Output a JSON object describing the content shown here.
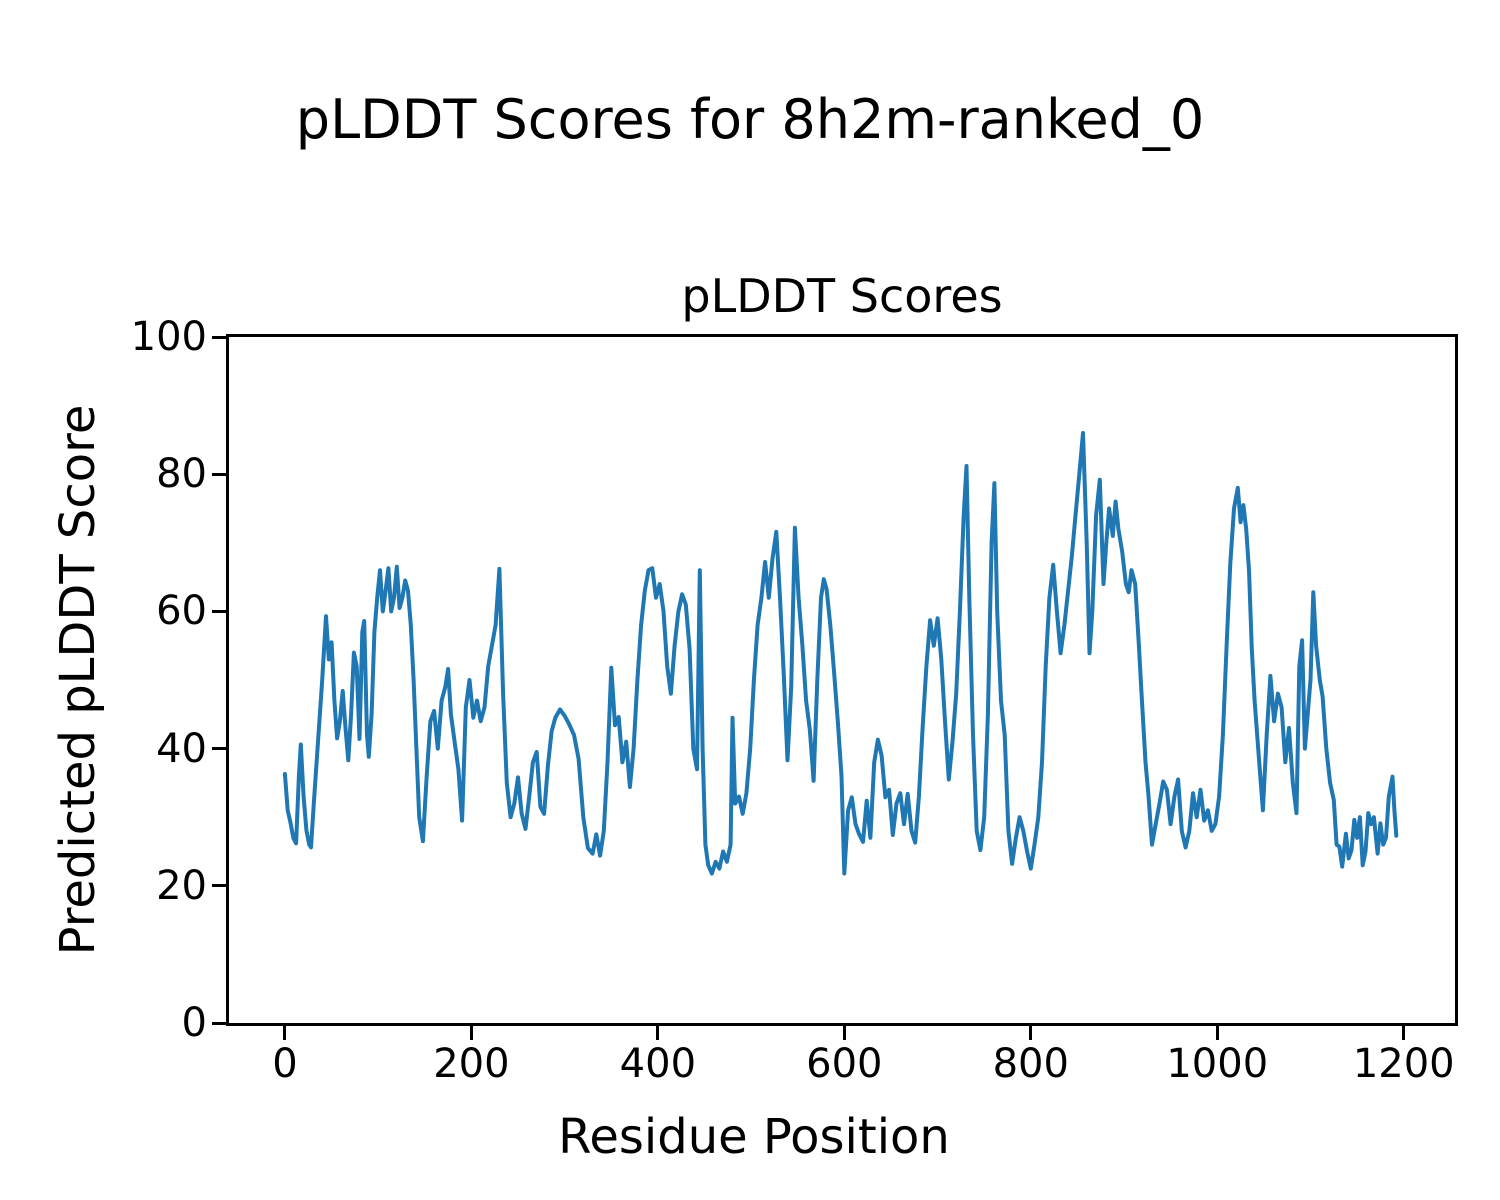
{
  "figure": {
    "suptitle": "pLDDT Scores for 8h2m-ranked_0"
  },
  "chart_data": {
    "type": "line",
    "title": "pLDDT Scores",
    "xlabel": "Residue Position",
    "ylabel": "Predicted pLDDT Score",
    "xlim": [
      -60,
      1255
    ],
    "ylim": [
      0,
      100
    ],
    "xticks": [
      0,
      200,
      400,
      600,
      800,
      1000,
      1200
    ],
    "yticks": [
      0,
      20,
      40,
      60,
      80,
      100
    ],
    "grid": false,
    "legend": "none",
    "line_color": "#1f77b4",
    "line_width": 4,
    "series": [
      {
        "name": "pLDDT",
        "points": [
          [
            0,
            36.3
          ],
          [
            3,
            31
          ],
          [
            6,
            29.2
          ],
          [
            9,
            27
          ],
          [
            12,
            26.2
          ],
          [
            15,
            36
          ],
          [
            17,
            40.6
          ],
          [
            20,
            33
          ],
          [
            23,
            28.1
          ],
          [
            26,
            26
          ],
          [
            28,
            25.6
          ],
          [
            31,
            32
          ],
          [
            34,
            38
          ],
          [
            37,
            44
          ],
          [
            40,
            50
          ],
          [
            44,
            59.3
          ],
          [
            47,
            53
          ],
          [
            50,
            55.5
          ],
          [
            53,
            47
          ],
          [
            56,
            41.5
          ],
          [
            59,
            44
          ],
          [
            62,
            48.4
          ],
          [
            65,
            43
          ],
          [
            68,
            38.3
          ],
          [
            71,
            45
          ],
          [
            74,
            54
          ],
          [
            77,
            52
          ],
          [
            80,
            41.4
          ],
          [
            83,
            57
          ],
          [
            85,
            58.6
          ],
          [
            88,
            42
          ],
          [
            90,
            38.8
          ],
          [
            93,
            45
          ],
          [
            96,
            57
          ],
          [
            99,
            62
          ],
          [
            102,
            66
          ],
          [
            105,
            60
          ],
          [
            108,
            63
          ],
          [
            111,
            66.3
          ],
          [
            114,
            60
          ],
          [
            117,
            62
          ],
          [
            120,
            66.5
          ],
          [
            123,
            60.5
          ],
          [
            126,
            62
          ],
          [
            129,
            64.5
          ],
          [
            132,
            63
          ],
          [
            135,
            58
          ],
          [
            138,
            50
          ],
          [
            141,
            40
          ],
          [
            144,
            30
          ],
          [
            148,
            26.5
          ],
          [
            152,
            36
          ],
          [
            156,
            44
          ],
          [
            160,
            45.5
          ],
          [
            164,
            40
          ],
          [
            168,
            47
          ],
          [
            172,
            49
          ],
          [
            175,
            51.6
          ],
          [
            178,
            45
          ],
          [
            182,
            41
          ],
          [
            186,
            37
          ],
          [
            190,
            29.5
          ],
          [
            194,
            46
          ],
          [
            198,
            50
          ],
          [
            202,
            44.5
          ],
          [
            206,
            47
          ],
          [
            210,
            44
          ],
          [
            214,
            46
          ],
          [
            218,
            52
          ],
          [
            222,
            55
          ],
          [
            226,
            58
          ],
          [
            230,
            66.2
          ],
          [
            234,
            48
          ],
          [
            238,
            35
          ],
          [
            242,
            30
          ],
          [
            246,
            32
          ],
          [
            250,
            35.8
          ],
          [
            254,
            30.5
          ],
          [
            258,
            28.3
          ],
          [
            262,
            33
          ],
          [
            266,
            38
          ],
          [
            270,
            39.5
          ],
          [
            274,
            31.5
          ],
          [
            278,
            30.5
          ],
          [
            282,
            37.5
          ],
          [
            286,
            42.5
          ],
          [
            290,
            44.5
          ],
          [
            295,
            45.7
          ],
          [
            300,
            44.8
          ],
          [
            305,
            43.5
          ],
          [
            310,
            42
          ],
          [
            315,
            38.5
          ],
          [
            320,
            30
          ],
          [
            325,
            25.5
          ],
          [
            330,
            24.7
          ],
          [
            334,
            27.5
          ],
          [
            338,
            24.4
          ],
          [
            342,
            28
          ],
          [
            346,
            38
          ],
          [
            350,
            51.8
          ],
          [
            354,
            43.4
          ],
          [
            358,
            44.6
          ],
          [
            362,
            38
          ],
          [
            366,
            41
          ],
          [
            370,
            34.4
          ],
          [
            374,
            40
          ],
          [
            378,
            50
          ],
          [
            382,
            58
          ],
          [
            386,
            63
          ],
          [
            390,
            66
          ],
          [
            394,
            66.3
          ],
          [
            398,
            62
          ],
          [
            402,
            64
          ],
          [
            406,
            60
          ],
          [
            410,
            52
          ],
          [
            414,
            48
          ],
          [
            418,
            55
          ],
          [
            422,
            60
          ],
          [
            426,
            62.5
          ],
          [
            430,
            61
          ],
          [
            434,
            54.5
          ],
          [
            438,
            40
          ],
          [
            442,
            37
          ],
          [
            445,
            66
          ],
          [
            448,
            40
          ],
          [
            451,
            26
          ],
          [
            454,
            23
          ],
          [
            458,
            21.8
          ],
          [
            462,
            23.5
          ],
          [
            466,
            22.5
          ],
          [
            470,
            25
          ],
          [
            474,
            23.5
          ],
          [
            478,
            26
          ],
          [
            480,
            44.5
          ],
          [
            483,
            32
          ],
          [
            487,
            33
          ],
          [
            491,
            30.5
          ],
          [
            495,
            33.5
          ],
          [
            499,
            40
          ],
          [
            503,
            50
          ],
          [
            507,
            58
          ],
          [
            511,
            62
          ],
          [
            515,
            67.2
          ],
          [
            519,
            62
          ],
          [
            523,
            67.7
          ],
          [
            527,
            71.6
          ],
          [
            531,
            62
          ],
          [
            535,
            51
          ],
          [
            539,
            38.3
          ],
          [
            543,
            49
          ],
          [
            547,
            72.2
          ],
          [
            551,
            62
          ],
          [
            555,
            55
          ],
          [
            559,
            47
          ],
          [
            563,
            42.8
          ],
          [
            567,
            35.3
          ],
          [
            571,
            50
          ],
          [
            575,
            62
          ],
          [
            578,
            64.7
          ],
          [
            581,
            63.2
          ],
          [
            585,
            58
          ],
          [
            589,
            51.1
          ],
          [
            593,
            44
          ],
          [
            597,
            36
          ],
          [
            600,
            21.8
          ],
          [
            604,
            31
          ],
          [
            608,
            32.9
          ],
          [
            612,
            29
          ],
          [
            616,
            27.5
          ],
          [
            620,
            26.4
          ],
          [
            624,
            32.4
          ],
          [
            628,
            27
          ],
          [
            632,
            38
          ],
          [
            636,
            41.3
          ],
          [
            640,
            39
          ],
          [
            644,
            32.9
          ],
          [
            648,
            34
          ],
          [
            652,
            27.4
          ],
          [
            656,
            32
          ],
          [
            660,
            33.5
          ],
          [
            664,
            29
          ],
          [
            668,
            33.4
          ],
          [
            672,
            28
          ],
          [
            676,
            26.3
          ],
          [
            680,
            33
          ],
          [
            684,
            43
          ],
          [
            688,
            52
          ],
          [
            692,
            58.7
          ],
          [
            696,
            55
          ],
          [
            700,
            59
          ],
          [
            704,
            53
          ],
          [
            708,
            44
          ],
          [
            712,
            35.5
          ],
          [
            716,
            41
          ],
          [
            720,
            48
          ],
          [
            724,
            60
          ],
          [
            728,
            74
          ],
          [
            731,
            81.2
          ],
          [
            734,
            62
          ],
          [
            738,
            42
          ],
          [
            742,
            28
          ],
          [
            746,
            25.2
          ],
          [
            750,
            30
          ],
          [
            754,
            45
          ],
          [
            758,
            70
          ],
          [
            761,
            78.7
          ],
          [
            764,
            60
          ],
          [
            768,
            47
          ],
          [
            772,
            42
          ],
          [
            776,
            28
          ],
          [
            780,
            23.2
          ],
          [
            784,
            27
          ],
          [
            788,
            30
          ],
          [
            792,
            28
          ],
          [
            796,
            25
          ],
          [
            800,
            22.5
          ],
          [
            804,
            26
          ],
          [
            808,
            30
          ],
          [
            812,
            38
          ],
          [
            816,
            52
          ],
          [
            820,
            62
          ],
          [
            824,
            66.8
          ],
          [
            828,
            60
          ],
          [
            832,
            53.9
          ],
          [
            836,
            58
          ],
          [
            840,
            63
          ],
          [
            844,
            68
          ],
          [
            848,
            74
          ],
          [
            852,
            80
          ],
          [
            856,
            86
          ],
          [
            860,
            70
          ],
          [
            863,
            53.9
          ],
          [
            866,
            60
          ],
          [
            870,
            74
          ],
          [
            874,
            79.2
          ],
          [
            878,
            64
          ],
          [
            881,
            70
          ],
          [
            884,
            75
          ],
          [
            888,
            71
          ],
          [
            891,
            76
          ],
          [
            894,
            72
          ],
          [
            898,
            68.7
          ],
          [
            902,
            64
          ],
          [
            905,
            62.8
          ],
          [
            908,
            66
          ],
          [
            912,
            64
          ],
          [
            916,
            55
          ],
          [
            919,
            47.6
          ],
          [
            923,
            38
          ],
          [
            926,
            33.5
          ],
          [
            930,
            26
          ],
          [
            934,
            29
          ],
          [
            938,
            32
          ],
          [
            942,
            35.2
          ],
          [
            946,
            34
          ],
          [
            950,
            29
          ],
          [
            954,
            33
          ],
          [
            958,
            35.5
          ],
          [
            962,
            28
          ],
          [
            966,
            25.6
          ],
          [
            970,
            28
          ],
          [
            974,
            33.5
          ],
          [
            978,
            30
          ],
          [
            982,
            34
          ],
          [
            986,
            29.5
          ],
          [
            990,
            31
          ],
          [
            994,
            28
          ],
          [
            998,
            29
          ],
          [
            1002,
            33
          ],
          [
            1006,
            42
          ],
          [
            1010,
            55
          ],
          [
            1014,
            67
          ],
          [
            1018,
            75
          ],
          [
            1022,
            78
          ],
          [
            1025,
            73
          ],
          [
            1028,
            75.5
          ],
          [
            1031,
            72
          ],
          [
            1034,
            66
          ],
          [
            1037,
            54.5
          ],
          [
            1040,
            47
          ],
          [
            1044,
            39.8
          ],
          [
            1049,
            31
          ],
          [
            1053,
            42
          ],
          [
            1057,
            50.6
          ],
          [
            1061,
            44
          ],
          [
            1065,
            48
          ],
          [
            1069,
            46
          ],
          [
            1073,
            38
          ],
          [
            1077,
            43
          ],
          [
            1081,
            35
          ],
          [
            1085,
            30.6
          ],
          [
            1088,
            52
          ],
          [
            1091,
            55.8
          ],
          [
            1094,
            40
          ],
          [
            1097,
            45
          ],
          [
            1100,
            50
          ],
          [
            1103,
            62.8
          ],
          [
            1106,
            55
          ],
          [
            1110,
            50
          ],
          [
            1113,
            47.6
          ],
          [
            1117,
            40
          ],
          [
            1121,
            35
          ],
          [
            1125,
            32.5
          ],
          [
            1128,
            26
          ],
          [
            1131,
            25.7
          ],
          [
            1134,
            22.8
          ],
          [
            1138,
            27.6
          ],
          [
            1141,
            24
          ],
          [
            1144,
            25.2
          ],
          [
            1147,
            29.6
          ],
          [
            1150,
            27
          ],
          [
            1153,
            30
          ],
          [
            1156,
            23
          ],
          [
            1159,
            25
          ],
          [
            1162,
            30.6
          ],
          [
            1165,
            29
          ],
          [
            1168,
            30
          ],
          [
            1172,
            24.7
          ],
          [
            1175,
            29.1
          ],
          [
            1178,
            26
          ],
          [
            1181,
            27
          ],
          [
            1184,
            33
          ],
          [
            1188,
            35.9
          ],
          [
            1190,
            31
          ],
          [
            1192,
            27.3
          ]
        ]
      }
    ]
  }
}
